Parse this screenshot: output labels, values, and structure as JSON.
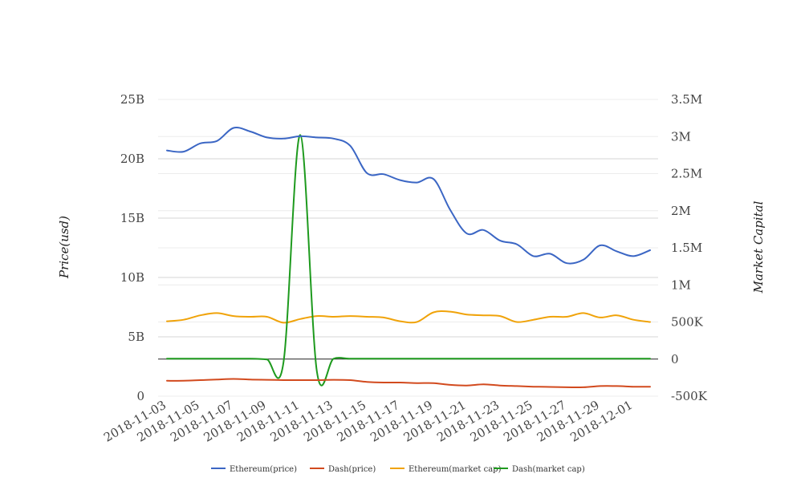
{
  "chart_data": {
    "type": "line",
    "title": "",
    "ylabel_left": "Price(usd)",
    "ylabel_right": "Market Capital",
    "x": [
      "2018-11-03",
      "2018-11-04",
      "2018-11-05",
      "2018-11-06",
      "2018-11-07",
      "2018-11-08",
      "2018-11-09",
      "2018-11-10",
      "2018-11-11",
      "2018-11-12",
      "2018-11-13",
      "2018-11-14",
      "2018-11-15",
      "2018-11-16",
      "2018-11-17",
      "2018-11-18",
      "2018-11-19",
      "2018-11-20",
      "2018-11-21",
      "2018-11-22",
      "2018-11-23",
      "2018-11-24",
      "2018-11-25",
      "2018-11-26",
      "2018-11-27",
      "2018-11-28",
      "2018-11-29",
      "2018-11-30",
      "2018-12-01",
      "2018-12-02"
    ],
    "x_tick_labels": [
      "2018-11-03",
      "2018-11-05",
      "2018-11-07",
      "2018-11-09",
      "2018-11-11",
      "2018-11-13",
      "2018-11-15",
      "2018-11-17",
      "2018-11-19",
      "2018-11-21",
      "2018-11-23",
      "2018-11-25",
      "2018-11-27",
      "2018-11-29",
      "2018-12-01"
    ],
    "y_left": {
      "range": [
        0,
        25000000000
      ],
      "ticks": [
        0,
        5000000000,
        10000000000,
        15000000000,
        20000000000,
        25000000000
      ],
      "tick_labels": [
        "0",
        "5B",
        "10B",
        "15B",
        "20B",
        "25B"
      ]
    },
    "y_right": {
      "range": [
        -500000,
        3500000
      ],
      "ticks": [
        -500000,
        0,
        500000,
        1000000,
        1500000,
        2000000,
        2500000,
        3000000,
        3500000
      ],
      "tick_labels": [
        "-500K",
        "0",
        "500K",
        "1M",
        "1.5M",
        "2M",
        "2.5M",
        "3M",
        "3.5M"
      ]
    },
    "grid": true,
    "legend_position": "bottom",
    "series": [
      {
        "name": "Ethereum(price)",
        "axis": "left",
        "color": "#3b66c4",
        "values": [
          20700000000,
          20600000000,
          21300000000,
          21500000000,
          22600000000,
          22300000000,
          21800000000,
          21700000000,
          21900000000,
          21800000000,
          21700000000,
          21100000000,
          18800000000,
          18700000000,
          18200000000,
          18000000000,
          18300000000,
          15700000000,
          13700000000,
          14000000000,
          13100000000,
          12800000000,
          11800000000,
          12000000000,
          11200000000,
          11500000000,
          12700000000,
          12200000000,
          11800000000,
          12300000000
        ]
      },
      {
        "name": "Dash(price)",
        "axis": "left",
        "color": "#d24a1e",
        "values": [
          1300000000,
          1300000000,
          1350000000,
          1400000000,
          1450000000,
          1400000000,
          1380000000,
          1350000000,
          1350000000,
          1350000000,
          1380000000,
          1350000000,
          1200000000,
          1150000000,
          1150000000,
          1100000000,
          1100000000,
          950000000,
          900000000,
          1000000000,
          900000000,
          850000000,
          800000000,
          780000000,
          750000000,
          750000000,
          850000000,
          850000000,
          800000000,
          800000000
        ]
      },
      {
        "name": "Ethereum(market cap)",
        "axis": "right",
        "color": "#f0a30a",
        "values": [
          510000,
          530000,
          590000,
          620000,
          580000,
          570000,
          570000,
          490000,
          540000,
          580000,
          570000,
          580000,
          570000,
          560000,
          510000,
          500000,
          630000,
          640000,
          600000,
          590000,
          580000,
          500000,
          530000,
          570000,
          570000,
          620000,
          560000,
          590000,
          530000,
          500000
        ]
      },
      {
        "name": "Dash(market cap)",
        "axis": "right",
        "color": "#1e9a1e",
        "values": [
          5000,
          5000,
          5000,
          5000,
          5000,
          5000,
          -5000,
          -40000,
          3020000,
          -165000,
          5000,
          5000,
          5000,
          5000,
          5000,
          5000,
          5000,
          5000,
          5000,
          5000,
          5000,
          5000,
          5000,
          5000,
          5000,
          5000,
          5000,
          5000,
          5000,
          5000
        ]
      }
    ]
  }
}
